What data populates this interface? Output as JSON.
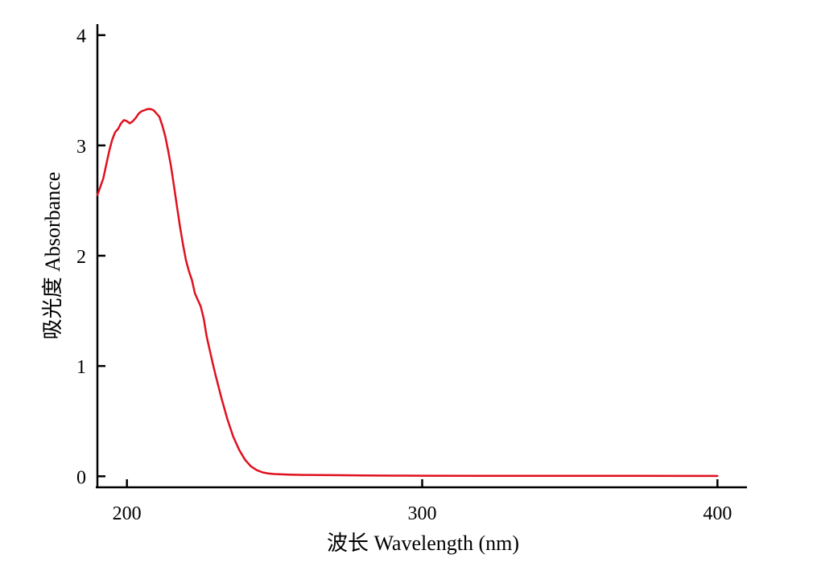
{
  "chart_data": {
    "type": "line",
    "title": "",
    "xlabel": "波长 Wavelength (nm)",
    "ylabel": "吸光度 Absorbance",
    "xlim": [
      190,
      410
    ],
    "ylim": [
      -0.1,
      4.1
    ],
    "x_ticks": [
      200,
      300,
      400
    ],
    "x_tick_labels": [
      "200",
      "300",
      "400"
    ],
    "y_ticks": [
      0,
      1,
      2,
      3,
      4
    ],
    "y_tick_labels": [
      "0",
      "1",
      "2",
      "3",
      "4"
    ],
    "grid": false,
    "legend": "none",
    "series": [
      {
        "color": "#e0101e",
        "x": [
          190,
          192,
          194,
          195,
          196,
          197,
          198,
          199,
          200,
          201,
          202,
          203,
          204,
          205,
          206,
          207,
          208,
          209,
          210,
          211,
          212,
          213,
          214,
          215,
          216,
          217,
          218,
          219,
          220,
          221,
          222,
          223,
          224,
          225,
          226,
          227,
          228,
          229,
          230,
          232,
          234,
          236,
          238,
          240,
          242,
          244,
          246,
          248,
          250,
          255,
          260,
          270,
          280,
          290,
          300,
          320,
          350,
          370,
          400
        ],
        "y": [
          2.55,
          2.7,
          2.95,
          3.05,
          3.12,
          3.15,
          3.2,
          3.23,
          3.22,
          3.2,
          3.22,
          3.25,
          3.29,
          3.31,
          3.32,
          3.33,
          3.33,
          3.32,
          3.29,
          3.26,
          3.18,
          3.08,
          2.95,
          2.8,
          2.62,
          2.44,
          2.26,
          2.1,
          1.96,
          1.86,
          1.78,
          1.66,
          1.6,
          1.54,
          1.43,
          1.27,
          1.15,
          1.03,
          0.92,
          0.71,
          0.52,
          0.36,
          0.24,
          0.15,
          0.09,
          0.055,
          0.035,
          0.025,
          0.02,
          0.015,
          0.012,
          0.01,
          0.008,
          0.006,
          0.005,
          0.004,
          0.004,
          0.004,
          0.003
        ]
      }
    ]
  }
}
